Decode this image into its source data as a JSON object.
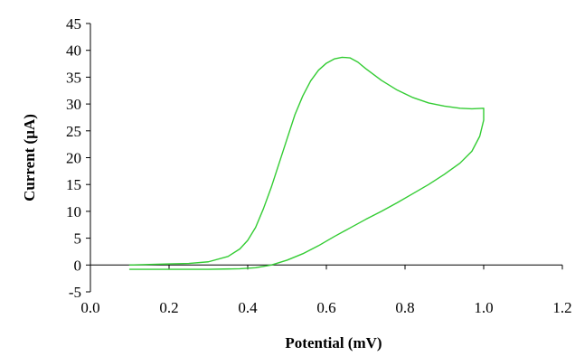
{
  "chart_data": {
    "type": "line",
    "title": "",
    "xlabel": "Potential (mV)",
    "ylabel": "Current (µA)",
    "xlim": [
      0.0,
      1.2
    ],
    "ylim": [
      -5,
      45
    ],
    "x_ticks": [
      0.0,
      0.2,
      0.4,
      0.6,
      0.8,
      1.0,
      1.2
    ],
    "x_tick_labels": [
      "0.0",
      "0.2",
      "0.4",
      "0.6",
      "0.8",
      "1.0",
      "1.2"
    ],
    "y_ticks": [
      -5,
      0,
      5,
      10,
      15,
      20,
      25,
      30,
      35,
      40,
      45
    ],
    "y_tick_labels": [
      "-5",
      "0",
      "5",
      "10",
      "15",
      "20",
      "25",
      "30",
      "35",
      "40",
      "45"
    ],
    "grid": false,
    "legend": "none",
    "series": [
      {
        "color": "#33cc33",
        "x": [
          0.1,
          0.15,
          0.2,
          0.25,
          0.3,
          0.35,
          0.38,
          0.4,
          0.42,
          0.44,
          0.46,
          0.48,
          0.5,
          0.52,
          0.54,
          0.56,
          0.58,
          0.6,
          0.62,
          0.64,
          0.66,
          0.68,
          0.7,
          0.74,
          0.78,
          0.82,
          0.86,
          0.9,
          0.94,
          0.97,
          1.0,
          1.0,
          0.99,
          0.97,
          0.94,
          0.9,
          0.86,
          0.82,
          0.78,
          0.74,
          0.7,
          0.66,
          0.62,
          0.58,
          0.54,
          0.5,
          0.46,
          0.42,
          0.38,
          0.34,
          0.3,
          0.25,
          0.2,
          0.15,
          0.1
        ],
        "y": [
          0.0,
          0.1,
          0.2,
          0.3,
          0.6,
          1.6,
          3.0,
          4.6,
          7.0,
          10.5,
          14.5,
          19.0,
          23.5,
          28.0,
          31.5,
          34.3,
          36.3,
          37.6,
          38.4,
          38.7,
          38.6,
          37.8,
          36.6,
          34.4,
          32.6,
          31.2,
          30.2,
          29.6,
          29.2,
          29.1,
          29.2,
          27.0,
          24.0,
          21.2,
          19.0,
          16.9,
          15.0,
          13.3,
          11.6,
          10.0,
          8.5,
          6.9,
          5.3,
          3.6,
          2.1,
          0.9,
          0.0,
          -0.5,
          -0.7,
          -0.75,
          -0.8,
          -0.8,
          -0.8,
          -0.8,
          -0.8
        ]
      }
    ]
  }
}
